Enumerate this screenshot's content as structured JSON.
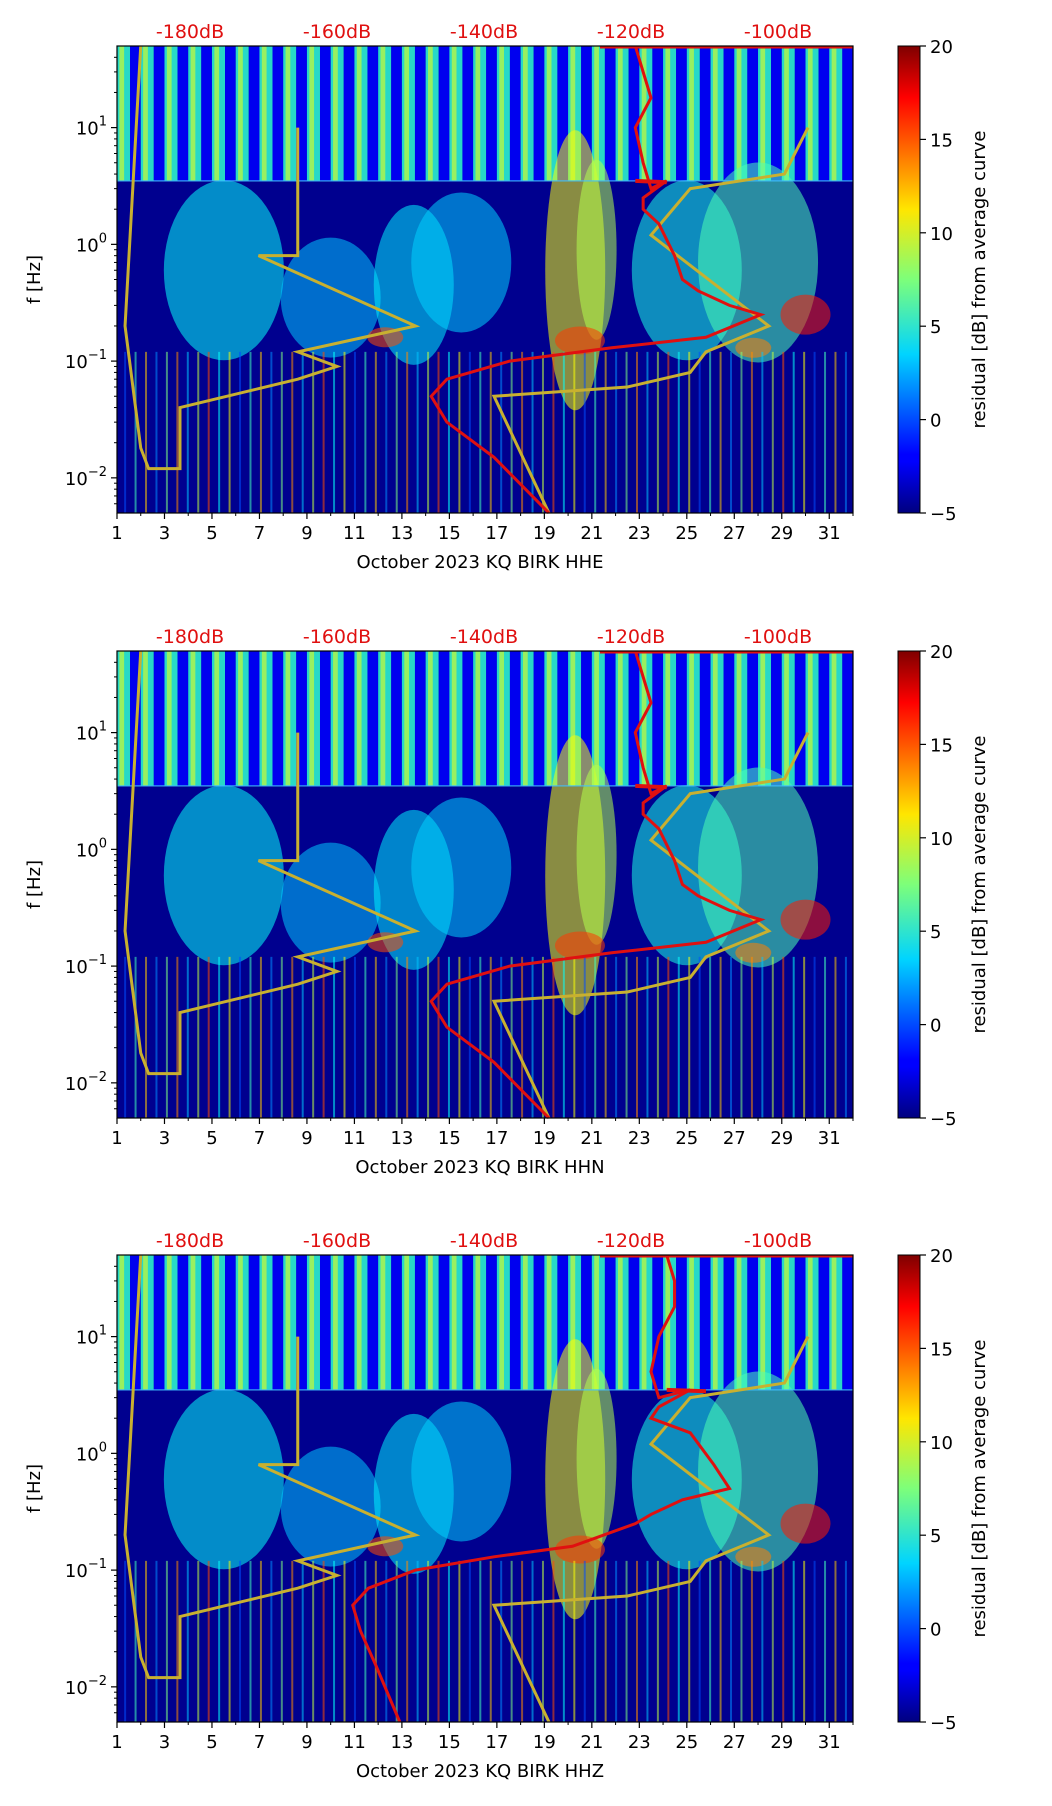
{
  "figure": {
    "colorbar_label": "residual [dB] from average curve",
    "colorbar_ticks": [
      "20",
      "15",
      "10",
      "5",
      "0",
      "−5"
    ],
    "colorbar_range": [
      -5,
      20
    ],
    "y_axis_label": "f [Hz]",
    "y_ticks": [
      {
        "base": "10",
        "exp": "1"
      },
      {
        "base": "10",
        "exp": "0"
      },
      {
        "base": "10",
        "exp": "−1"
      },
      {
        "base": "10",
        "exp": "−2"
      }
    ],
    "x_ticks": [
      "1",
      "3",
      "5",
      "7",
      "9",
      "11",
      "13",
      "15",
      "17",
      "19",
      "21",
      "23",
      "25",
      "27",
      "29",
      "31"
    ],
    "top_db_labels": [
      "-180dB",
      "-160dB",
      "-140dB",
      "-120dB",
      "-100dB"
    ],
    "colors": {
      "psd_curve": "#e01010",
      "noise_model": "#c8b030",
      "db_label": "#e01010",
      "frame": "#000000"
    }
  },
  "chart_data": [
    {
      "type": "heatmap",
      "title": "October 2023 KQ BIRK  HHE",
      "xlabel": "October 2023 KQ BIRK  HHE",
      "ylabel": "f [Hz]",
      "xlim": [
        1,
        32
      ],
      "ylim_hz": [
        0.005,
        50
      ],
      "yscale": "log",
      "colorbar": {
        "label": "residual [dB] from average curve",
        "range": [
          -5,
          20
        ]
      },
      "noise_model_db": [
        [
          -185,
          50
        ],
        [
          -187,
          0.2
        ],
        [
          -185,
          0.018
        ],
        [
          -184,
          0.012
        ],
        [
          -180,
          0.012
        ],
        [
          -180,
          0.04
        ],
        [
          -165,
          0.07
        ],
        [
          -160,
          0.09
        ],
        [
          -165,
          0.12
        ],
        [
          -150,
          0.2
        ],
        [
          -170,
          0.8
        ],
        [
          -165,
          0.8
        ],
        [
          -165,
          10
        ]
      ],
      "noise_model_db_right": [
        [
          -100,
          10
        ],
        [
          -103,
          4
        ],
        [
          -115,
          3
        ],
        [
          -120,
          1.2
        ],
        [
          -105,
          0.2
        ],
        [
          -113,
          0.12
        ],
        [
          -115,
          0.08
        ],
        [
          -123,
          0.06
        ],
        [
          -140,
          0.05
        ],
        [
          -133,
          0.005
        ]
      ],
      "psd_curve_db": [
        [
          -122,
          50
        ],
        [
          -121,
          30
        ],
        [
          -120,
          18
        ],
        [
          -122,
          10
        ],
        [
          -121,
          5
        ],
        [
          -120,
          3
        ],
        [
          -118,
          3.5
        ],
        [
          -121,
          2.5
        ],
        [
          -121,
          2
        ],
        [
          -119,
          1.5
        ],
        [
          -117,
          0.8
        ],
        [
          -116,
          0.5
        ],
        [
          -114,
          0.4
        ],
        [
          -110,
          0.3
        ],
        [
          -106,
          0.25
        ],
        [
          -113,
          0.16
        ],
        [
          -125,
          0.13
        ],
        [
          -138,
          0.1
        ],
        [
          -146,
          0.07
        ],
        [
          -148,
          0.05
        ],
        [
          -146,
          0.03
        ],
        [
          -140,
          0.015
        ],
        [
          -133,
          0.005
        ]
      ],
      "psd_peak_db": [
        [
          -122,
          3.5
        ],
        [
          -118,
          3.4
        ]
      ]
    },
    {
      "type": "heatmap",
      "title": "October 2023 KQ BIRK  HHN",
      "xlabel": "October 2023 KQ BIRK  HHN",
      "ylabel": "f [Hz]",
      "xlim": [
        1,
        32
      ],
      "ylim_hz": [
        0.005,
        50
      ],
      "yscale": "log",
      "colorbar": {
        "label": "residual [dB] from average curve",
        "range": [
          -5,
          20
        ]
      },
      "noise_model_db": [
        [
          -185,
          50
        ],
        [
          -187,
          0.2
        ],
        [
          -185,
          0.018
        ],
        [
          -184,
          0.012
        ],
        [
          -180,
          0.012
        ],
        [
          -180,
          0.04
        ],
        [
          -165,
          0.07
        ],
        [
          -160,
          0.09
        ],
        [
          -165,
          0.12
        ],
        [
          -150,
          0.2
        ],
        [
          -170,
          0.8
        ],
        [
          -165,
          0.8
        ],
        [
          -165,
          10
        ]
      ],
      "noise_model_db_right": [
        [
          -100,
          10
        ],
        [
          -103,
          4
        ],
        [
          -115,
          3
        ],
        [
          -120,
          1.2
        ],
        [
          -105,
          0.2
        ],
        [
          -113,
          0.12
        ],
        [
          -115,
          0.08
        ],
        [
          -123,
          0.06
        ],
        [
          -140,
          0.05
        ],
        [
          -133,
          0.005
        ]
      ],
      "psd_curve_db": [
        [
          -122,
          50
        ],
        [
          -121,
          30
        ],
        [
          -120,
          18
        ],
        [
          -122,
          10
        ],
        [
          -121,
          5
        ],
        [
          -120,
          3
        ],
        [
          -118,
          3.5
        ],
        [
          -121,
          2.5
        ],
        [
          -121,
          2
        ],
        [
          -119,
          1.5
        ],
        [
          -117,
          0.8
        ],
        [
          -116,
          0.5
        ],
        [
          -114,
          0.4
        ],
        [
          -110,
          0.3
        ],
        [
          -106,
          0.25
        ],
        [
          -113,
          0.16
        ],
        [
          -125,
          0.13
        ],
        [
          -138,
          0.1
        ],
        [
          -146,
          0.07
        ],
        [
          -148,
          0.05
        ],
        [
          -146,
          0.03
        ],
        [
          -140,
          0.015
        ],
        [
          -133,
          0.005
        ]
      ],
      "psd_peak_db": [
        [
          -122,
          3.5
        ],
        [
          -118,
          3.4
        ]
      ]
    },
    {
      "type": "heatmap",
      "title": "October 2023 KQ BIRK  HHZ",
      "xlabel": "October 2023 KQ BIRK  HHZ",
      "ylabel": "f [Hz]",
      "xlim": [
        1,
        32
      ],
      "ylim_hz": [
        0.005,
        50
      ],
      "yscale": "log",
      "colorbar": {
        "label": "residual [dB] from average curve",
        "range": [
          -5,
          20
        ]
      },
      "noise_model_db": [
        [
          -185,
          50
        ],
        [
          -187,
          0.2
        ],
        [
          -185,
          0.018
        ],
        [
          -184,
          0.012
        ],
        [
          -180,
          0.012
        ],
        [
          -180,
          0.04
        ],
        [
          -165,
          0.07
        ],
        [
          -160,
          0.09
        ],
        [
          -165,
          0.12
        ],
        [
          -150,
          0.2
        ],
        [
          -170,
          0.8
        ],
        [
          -165,
          0.8
        ],
        [
          -165,
          10
        ]
      ],
      "noise_model_db_right": [
        [
          -100,
          10
        ],
        [
          -103,
          4
        ],
        [
          -115,
          3
        ],
        [
          -120,
          1.2
        ],
        [
          -105,
          0.2
        ],
        [
          -113,
          0.12
        ],
        [
          -115,
          0.08
        ],
        [
          -123,
          0.06
        ],
        [
          -140,
          0.05
        ],
        [
          -133,
          0.005
        ]
      ],
      "psd_curve_db": [
        [
          -118,
          50
        ],
        [
          -117,
          30
        ],
        [
          -117,
          18
        ],
        [
          -119,
          10
        ],
        [
          -120,
          5
        ],
        [
          -119,
          3
        ],
        [
          -115,
          3.5
        ],
        [
          -119,
          2.5
        ],
        [
          -120,
          2
        ],
        [
          -115,
          1.5
        ],
        [
          -112,
          0.8
        ],
        [
          -110,
          0.5
        ],
        [
          -116,
          0.4
        ],
        [
          -120,
          0.3
        ],
        [
          -122,
          0.25
        ],
        [
          -130,
          0.16
        ],
        [
          -140,
          0.13
        ],
        [
          -150,
          0.1
        ],
        [
          -156,
          0.07
        ],
        [
          -158,
          0.05
        ],
        [
          -157,
          0.03
        ],
        [
          -155,
          0.015
        ],
        [
          -152,
          0.005
        ]
      ],
      "psd_peak_db": [
        [
          -118,
          3.5
        ],
        [
          -113,
          3.4
        ]
      ]
    }
  ]
}
